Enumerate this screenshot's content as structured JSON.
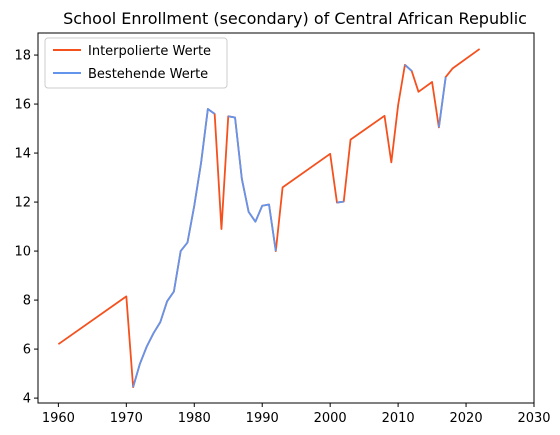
{
  "chart_data": {
    "type": "line",
    "title": "School Enrollment (secondary) of Central African Republic",
    "xlabel": "",
    "ylabel": "",
    "xlim": [
      1957,
      2030
    ],
    "ylim": [
      3.8,
      18.9
    ],
    "xticks": [
      1960,
      1970,
      1980,
      1990,
      2000,
      2010,
      2020,
      2030
    ],
    "yticks": [
      4,
      6,
      8,
      10,
      12,
      14,
      16,
      18
    ],
    "grid": false,
    "legend_position": "top-left",
    "series": [
      {
        "name": "Interpolierte Werte",
        "color": "#f4511e",
        "x": [
          1960,
          1970,
          1971,
          1972,
          1973,
          1974,
          1975,
          1976,
          1977,
          1978,
          1979,
          1980,
          1981,
          1982,
          1983,
          1984,
          1985,
          1986,
          1987,
          1988,
          1989,
          1990,
          1991,
          1992,
          1993,
          2000,
          2001,
          2002,
          2003,
          2008,
          2009,
          2010,
          2011,
          2012,
          2013,
          2015,
          2016,
          2017,
          2018,
          2022
        ],
        "y": [
          6.2,
          8.15,
          4.45,
          5.4,
          6.1,
          6.65,
          7.1,
          7.95,
          8.35,
          10.0,
          10.35,
          11.85,
          13.6,
          15.8,
          15.6,
          10.9,
          15.5,
          15.45,
          12.95,
          11.6,
          11.2,
          11.85,
          11.9,
          10.0,
          12.6,
          13.97,
          11.98,
          12.02,
          14.55,
          15.52,
          13.62,
          15.95,
          17.6,
          17.35,
          16.5,
          16.9,
          15.05,
          17.1,
          17.45,
          18.25
        ]
      },
      {
        "name": "Bestehende Werte",
        "color": "#6495ed",
        "segments": [
          {
            "x": [
              1971,
              1972,
              1973,
              1974,
              1975,
              1976,
              1977,
              1978,
              1979,
              1980,
              1981,
              1982,
              1983
            ],
            "y": [
              4.45,
              5.4,
              6.1,
              6.65,
              7.1,
              7.95,
              8.35,
              10.0,
              10.35,
              11.85,
              13.6,
              15.8,
              15.6
            ]
          },
          {
            "x": [
              1985,
              1986,
              1987,
              1988,
              1989,
              1990,
              1991,
              1992
            ],
            "y": [
              15.5,
              15.45,
              12.95,
              11.6,
              11.2,
              11.85,
              11.9,
              10.0
            ]
          },
          {
            "x": [
              2001,
              2002
            ],
            "y": [
              11.98,
              12.02
            ]
          },
          {
            "x": [
              2011,
              2012
            ],
            "y": [
              17.6,
              17.35
            ]
          },
          {
            "x": [
              2016,
              2017
            ],
            "y": [
              15.05,
              17.1
            ]
          }
        ]
      }
    ]
  }
}
